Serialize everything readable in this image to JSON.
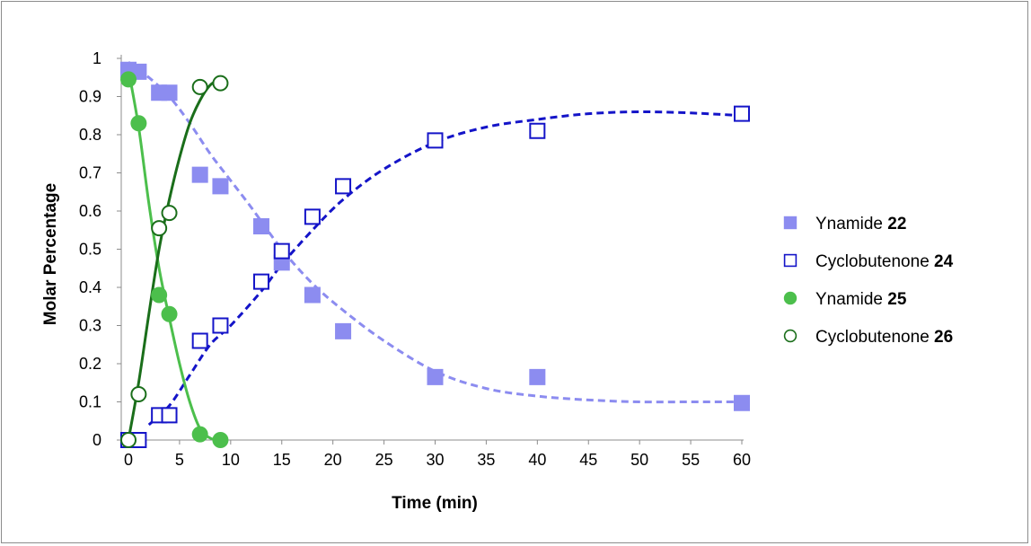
{
  "chart_data": {
    "type": "scatter",
    "xlabel": "Time (min)",
    "ylabel": "Molar Percentage",
    "xlim": [
      0,
      60
    ],
    "ylim": [
      0,
      1
    ],
    "xticks": [
      "0",
      "5",
      "10",
      "15",
      "20",
      "25",
      "30",
      "35",
      "40",
      "45",
      "50",
      "55",
      "60"
    ],
    "yticks": [
      "0",
      "0.1",
      "0.2",
      "0.3",
      "0.4",
      "0.5",
      "0.6",
      "0.7",
      "0.8",
      "0.9",
      "1"
    ],
    "grid": false,
    "legend_position": "right",
    "series": [
      {
        "name": "Ynamide",
        "name_bold": "22",
        "marker": "square-filled",
        "color": "#8c8cf0",
        "line": "dashed",
        "points": [
          [
            0,
            0.97
          ],
          [
            1,
            0.965
          ],
          [
            3,
            0.91
          ],
          [
            4,
            0.91
          ],
          [
            7,
            0.695
          ],
          [
            9,
            0.665
          ],
          [
            13,
            0.56
          ],
          [
            15,
            0.465
          ],
          [
            18,
            0.38
          ],
          [
            21,
            0.285
          ],
          [
            30,
            0.165
          ],
          [
            40,
            0.165
          ],
          [
            60,
            0.097
          ]
        ],
        "fit": [
          [
            0,
            0.99
          ],
          [
            2,
            0.95
          ],
          [
            4,
            0.9
          ],
          [
            6,
            0.83
          ],
          [
            8,
            0.75
          ],
          [
            10,
            0.68
          ],
          [
            12,
            0.61
          ],
          [
            15,
            0.5
          ],
          [
            18,
            0.41
          ],
          [
            21,
            0.34
          ],
          [
            25,
            0.26
          ],
          [
            30,
            0.18
          ],
          [
            35,
            0.135
          ],
          [
            40,
            0.115
          ],
          [
            45,
            0.105
          ],
          [
            50,
            0.1
          ],
          [
            55,
            0.1
          ],
          [
            60,
            0.1
          ]
        ]
      },
      {
        "name": "Cyclobutenone",
        "name_bold": "24",
        "marker": "square-open",
        "color": "#1414c8",
        "line": "dashed",
        "points": [
          [
            0,
            0
          ],
          [
            1,
            0
          ],
          [
            3,
            0.065
          ],
          [
            4,
            0.065
          ],
          [
            7,
            0.26
          ],
          [
            9,
            0.3
          ],
          [
            13,
            0.415
          ],
          [
            15,
            0.495
          ],
          [
            18,
            0.585
          ],
          [
            21,
            0.665
          ],
          [
            30,
            0.785
          ],
          [
            40,
            0.81
          ],
          [
            60,
            0.855
          ]
        ],
        "fit": [
          [
            2,
            0.04
          ],
          [
            4,
            0.09
          ],
          [
            6,
            0.17
          ],
          [
            8,
            0.25
          ],
          [
            10,
            0.3
          ],
          [
            13,
            0.39
          ],
          [
            15,
            0.46
          ],
          [
            18,
            0.55
          ],
          [
            21,
            0.63
          ],
          [
            25,
            0.71
          ],
          [
            30,
            0.78
          ],
          [
            35,
            0.82
          ],
          [
            40,
            0.84
          ],
          [
            45,
            0.855
          ],
          [
            50,
            0.86
          ],
          [
            55,
            0.857
          ],
          [
            60,
            0.85
          ]
        ]
      },
      {
        "name": "Ynamide",
        "name_bold": "25",
        "marker": "circle-filled",
        "color": "#4cbf4c",
        "line": "solid",
        "points": [
          [
            0,
            0.945
          ],
          [
            1,
            0.83
          ],
          [
            3,
            0.38
          ],
          [
            4,
            0.33
          ],
          [
            7,
            0.015
          ],
          [
            9,
            0.0
          ]
        ],
        "fit": [
          [
            0,
            0.97
          ],
          [
            1,
            0.82
          ],
          [
            2,
            0.62
          ],
          [
            3,
            0.45
          ],
          [
            4,
            0.32
          ],
          [
            5,
            0.2
          ],
          [
            6,
            0.1
          ],
          [
            7,
            0.03
          ],
          [
            8,
            0.005
          ],
          [
            9,
            0.0
          ]
        ]
      },
      {
        "name": "Cyclobutenone",
        "name_bold": "26",
        "marker": "circle-open",
        "color": "#1a6e1a",
        "line": "solid",
        "points": [
          [
            0,
            0
          ],
          [
            1,
            0.12
          ],
          [
            3,
            0.555
          ],
          [
            4,
            0.595
          ],
          [
            7,
            0.925
          ],
          [
            9,
            0.935
          ]
        ],
        "fit": [
          [
            0,
            0.0
          ],
          [
            1,
            0.15
          ],
          [
            2,
            0.33
          ],
          [
            3,
            0.5
          ],
          [
            4,
            0.63
          ],
          [
            5,
            0.74
          ],
          [
            6,
            0.83
          ],
          [
            7,
            0.89
          ],
          [
            8,
            0.93
          ],
          [
            9,
            0.945
          ]
        ]
      }
    ]
  }
}
